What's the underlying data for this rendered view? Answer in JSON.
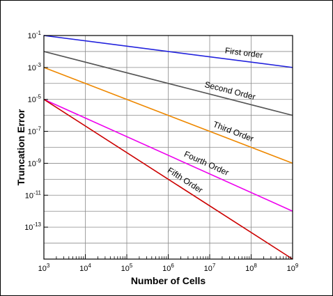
{
  "chart_data": {
    "type": "line",
    "title": "",
    "xlabel": "Number of Cells",
    "ylabel": "Truncation Error",
    "x_scale": "log",
    "y_scale": "log",
    "xlim": [
      1000,
      1000000000
    ],
    "ylim": [
      1e-15,
      0.1
    ],
    "grid": true,
    "legend": "none",
    "x_ticks": [
      {
        "base": "10",
        "exp": "3"
      },
      {
        "base": "10",
        "exp": "4"
      },
      {
        "base": "10",
        "exp": "5"
      },
      {
        "base": "10",
        "exp": "6"
      },
      {
        "base": "10",
        "exp": "7"
      },
      {
        "base": "10",
        "exp": "8"
      },
      {
        "base": "10",
        "exp": "9"
      }
    ],
    "y_ticks": [
      {
        "base": "10",
        "exp": "-1"
      },
      {
        "base": "10",
        "exp": "-3"
      },
      {
        "base": "10",
        "exp": "-5"
      },
      {
        "base": "10",
        "exp": "-7"
      },
      {
        "base": "10",
        "exp": "-9"
      },
      {
        "base": "10",
        "exp": "-11"
      },
      {
        "base": "10",
        "exp": "-13"
      }
    ],
    "series": [
      {
        "name": "First order",
        "color": "#2222dd",
        "x": [
          1000,
          1000000000
        ],
        "y": [
          0.1,
          0.001
        ]
      },
      {
        "name": "Second Order",
        "color": "#555555",
        "x": [
          1000,
          1000000000
        ],
        "y": [
          0.01,
          1e-06
        ]
      },
      {
        "name": "Third Order",
        "color": "#ee8800",
        "x": [
          1000,
          1000000000
        ],
        "y": [
          0.001,
          1e-09
        ]
      },
      {
        "name": "Fourth Order",
        "color": "#ee00ee",
        "x": [
          1000,
          1000000000
        ],
        "y": [
          1e-05,
          1e-12
        ]
      },
      {
        "name": "Fifth Order",
        "color": "#cc0000",
        "x": [
          1000,
          1000000000
        ],
        "y": [
          1e-05,
          1e-15
        ]
      }
    ]
  }
}
